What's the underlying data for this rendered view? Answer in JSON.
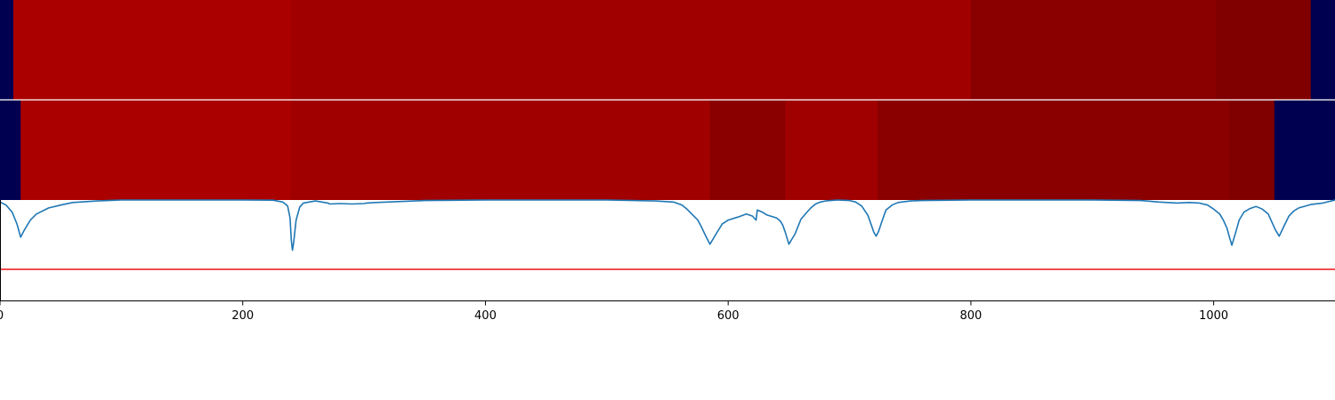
{
  "chart_data": [
    {
      "type": "heatmap",
      "panel": "row-1",
      "xlim": [
        0,
        1100
      ],
      "segments": [
        {
          "start": 0,
          "end": 11,
          "color": "#000050"
        },
        {
          "start": 11,
          "end": 240,
          "color": "#aa0000"
        },
        {
          "start": 240,
          "end": 800,
          "color": "#a00000"
        },
        {
          "start": 800,
          "end": 1002,
          "color": "#8a0000"
        },
        {
          "start": 1002,
          "end": 1080,
          "color": "#800000"
        },
        {
          "start": 1080,
          "end": 1100,
          "color": "#000050"
        }
      ]
    },
    {
      "type": "heatmap",
      "panel": "row-2",
      "xlim": [
        0,
        1100
      ],
      "segments": [
        {
          "start": 0,
          "end": 17,
          "color": "#000050"
        },
        {
          "start": 17,
          "end": 240,
          "color": "#aa0000"
        },
        {
          "start": 240,
          "end": 585,
          "color": "#a00000"
        },
        {
          "start": 585,
          "end": 647,
          "color": "#8a0000"
        },
        {
          "start": 647,
          "end": 723,
          "color": "#a00000"
        },
        {
          "start": 723,
          "end": 1013,
          "color": "#8a0000"
        },
        {
          "start": 1013,
          "end": 1050,
          "color": "#800000"
        },
        {
          "start": 1050,
          "end": 1100,
          "color": "#000050"
        }
      ]
    },
    {
      "type": "line",
      "panel": "row-3",
      "xlim": [
        0,
        1100
      ],
      "ylim": [
        0,
        1
      ],
      "xticks": [
        0,
        200,
        400,
        600,
        800,
        1000
      ],
      "xtick_labels": [
        "0",
        "200",
        "400",
        "600",
        "800",
        "1000"
      ],
      "threshold": {
        "value": 0.31,
        "color": "#ee1111"
      },
      "series": [
        {
          "color": "#1f77b4",
          "x": [
            0,
            5,
            10,
            14,
            17,
            20,
            25,
            30,
            40,
            50,
            60,
            80,
            100,
            150,
            200,
            225,
            233,
            237,
            239,
            240,
            241,
            242,
            244,
            247,
            250,
            260,
            270,
            272,
            280,
            290,
            300,
            302,
            310,
            330,
            350,
            400,
            450,
            500,
            540,
            555,
            562,
            566,
            570,
            575,
            578,
            582,
            585,
            590,
            595,
            600,
            608,
            615,
            620,
            623,
            624,
            628,
            632,
            635,
            640,
            643,
            645,
            647,
            650,
            655,
            660,
            665,
            668,
            672,
            676,
            680,
            690,
            700,
            705,
            710,
            715,
            718,
            720,
            722,
            724,
            727,
            730,
            735,
            740,
            750,
            760,
            800,
            900,
            940,
            955,
            970,
            980,
            988,
            995,
            1000,
            1005,
            1008,
            1011,
            1013,
            1015,
            1018,
            1021,
            1025,
            1030,
            1035,
            1040,
            1045,
            1048,
            1051,
            1054,
            1058,
            1062,
            1066,
            1070,
            1080,
            1090,
            1100
          ],
          "y": [
            0.98,
            0.95,
            0.88,
            0.76,
            0.63,
            0.7,
            0.8,
            0.86,
            0.92,
            0.95,
            0.975,
            0.99,
            1.0,
            1.0,
            1.0,
            0.998,
            0.98,
            0.94,
            0.82,
            0.6,
            0.5,
            0.58,
            0.8,
            0.93,
            0.97,
            0.99,
            0.97,
            0.96,
            0.965,
            0.96,
            0.965,
            0.97,
            0.975,
            0.985,
            0.995,
            1.0,
            1.0,
            1.0,
            0.99,
            0.98,
            0.95,
            0.91,
            0.86,
            0.8,
            0.73,
            0.63,
            0.56,
            0.66,
            0.76,
            0.8,
            0.83,
            0.86,
            0.84,
            0.8,
            0.9,
            0.88,
            0.85,
            0.84,
            0.82,
            0.79,
            0.75,
            0.68,
            0.56,
            0.66,
            0.81,
            0.88,
            0.92,
            0.96,
            0.98,
            0.99,
            1.0,
            0.995,
            0.98,
            0.94,
            0.85,
            0.75,
            0.68,
            0.64,
            0.69,
            0.8,
            0.9,
            0.95,
            0.975,
            0.99,
            0.995,
            1.0,
            1.0,
            0.995,
            0.98,
            0.97,
            0.975,
            0.97,
            0.95,
            0.91,
            0.86,
            0.8,
            0.72,
            0.63,
            0.55,
            0.67,
            0.8,
            0.88,
            0.915,
            0.935,
            0.91,
            0.86,
            0.78,
            0.7,
            0.64,
            0.74,
            0.84,
            0.89,
            0.92,
            0.955,
            0.97,
            1.0
          ]
        }
      ]
    }
  ]
}
